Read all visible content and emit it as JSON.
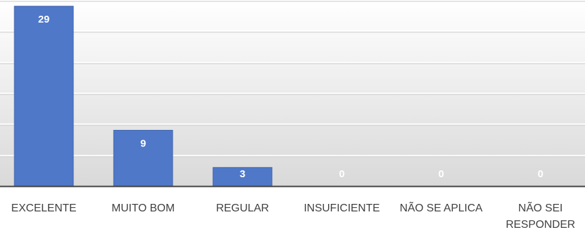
{
  "chart_data": {
    "type": "bar",
    "categories": [
      [
        "EXCELENTE"
      ],
      [
        "MUITO BOM"
      ],
      [
        "REGULAR"
      ],
      [
        "INSUFICIENTE"
      ],
      [
        "NÃO SE APLICA"
      ],
      [
        "NÃO SEI",
        "RESPONDER"
      ]
    ],
    "values": [
      29,
      9,
      3,
      0,
      0,
      0
    ],
    "data_labels": [
      "29",
      "9",
      "3",
      "0",
      "0",
      "0"
    ],
    "ylim": [
      0,
      30
    ],
    "grid": true,
    "colors": {
      "bar": "#4f78c8",
      "bar_border": "#3f63ad",
      "plot_bg_top": "#ffffff",
      "plot_bg_bottom": "#d9d9d9",
      "grid": "#ffffff",
      "axis": "#404040",
      "label": "#404040",
      "data_label": "#ffffff"
    }
  }
}
